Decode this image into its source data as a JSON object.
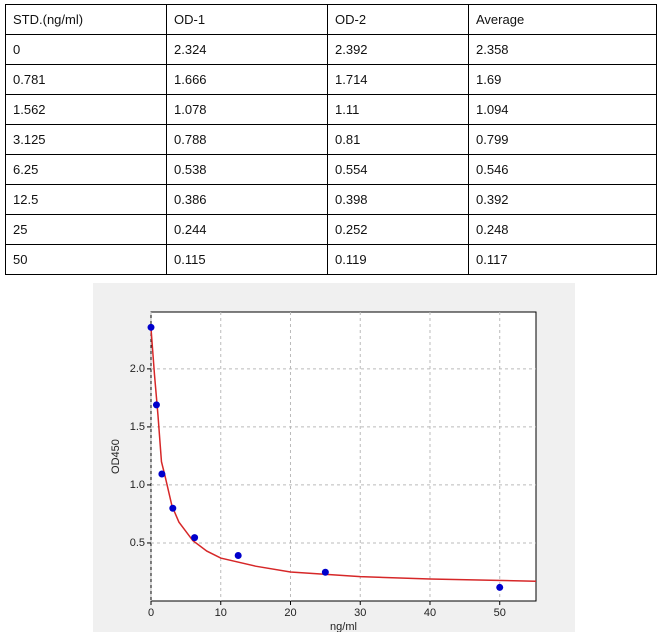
{
  "table": {
    "header": [
      "STD.(ng/ml)",
      "OD-1",
      "OD-2",
      "Average"
    ],
    "rows": [
      [
        0,
        2.324,
        2.392,
        2.358
      ],
      [
        0.781,
        1.666,
        1.714,
        1.69
      ],
      [
        1.562,
        1.078,
        1.11,
        1.094
      ],
      [
        3.125,
        0.788,
        0.81,
        0.799
      ],
      [
        6.25,
        0.538,
        0.554,
        0.546
      ],
      [
        12.5,
        0.386,
        0.398,
        0.392
      ],
      [
        25,
        0.244,
        0.252,
        0.248
      ],
      [
        50,
        0.115,
        0.119,
        0.117
      ]
    ]
  },
  "chart_data": {
    "type": "scatter",
    "xlabel": "ng/ml",
    "ylabel": "OD450",
    "point_color": "#0000cc",
    "xlim": [
      0,
      55.2
    ],
    "ylim": [
      0,
      2.49
    ],
    "xticks": [
      0,
      10,
      20,
      30,
      40,
      50
    ],
    "yticks": [
      {
        "value": 0.5,
        "label": "0.5"
      },
      {
        "value": 1,
        "label": "1.0"
      },
      {
        "value": 1.5,
        "label": "1.5"
      },
      {
        "value": 2,
        "label": "2.0"
      }
    ],
    "grid": true,
    "curve": {
      "color": "#d62728",
      "x": [
        0,
        0.5,
        1,
        1.5,
        2,
        3,
        4,
        6,
        8,
        10,
        15,
        20,
        30,
        40,
        55.2
      ],
      "y": [
        2.35,
        1.95,
        1.6,
        1.2,
        1.08,
        0.82,
        0.68,
        0.52,
        0.43,
        0.37,
        0.3,
        0.25,
        0.21,
        0.19,
        0.17
      ]
    }
  }
}
